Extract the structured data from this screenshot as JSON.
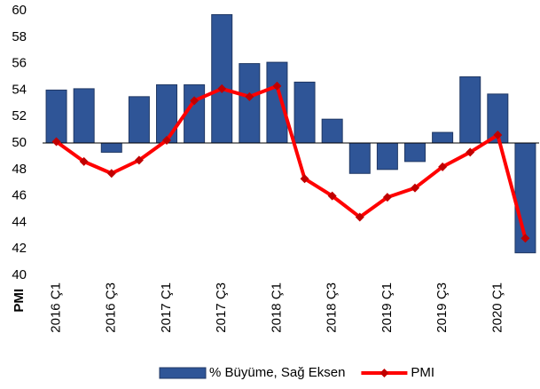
{
  "chart_data": {
    "type": "bar_line",
    "categories": [
      "2016 Ç1",
      null,
      "2016 Ç3",
      null,
      "2017 Ç1",
      null,
      "2017 Ç3",
      null,
      "2018 Ç1",
      null,
      "2018 Ç3",
      null,
      "2019 Ç1",
      null,
      "2019 Ç3",
      null,
      "2020 Ç1",
      null
    ],
    "series": [
      {
        "name": "% Büyüme, Sağ Eksen",
        "type": "bar",
        "color": "#2f5597",
        "values": [
          54.0,
          54.1,
          49.3,
          53.5,
          54.4,
          54.4,
          59.7,
          56.0,
          56.1,
          54.6,
          51.8,
          47.7,
          48.0,
          48.6,
          50.8,
          55.0,
          53.7,
          41.7
        ]
      },
      {
        "name": "PMI",
        "type": "line",
        "color": "#ff0000",
        "marker_color": "#c00000",
        "values": [
          50.1,
          48.6,
          47.7,
          48.7,
          50.2,
          53.2,
          54.1,
          53.5,
          54.3,
          47.3,
          46.0,
          44.4,
          45.9,
          46.6,
          48.2,
          49.3,
          50.6,
          42.8
        ]
      }
    ],
    "y_label": "PMI",
    "ylim": [
      40,
      60
    ],
    "yticks": [
      40,
      42,
      44,
      46,
      48,
      50,
      52,
      54,
      56,
      58,
      60
    ],
    "x_axis_crosses": 50,
    "grid": false,
    "legend": "bottom"
  }
}
